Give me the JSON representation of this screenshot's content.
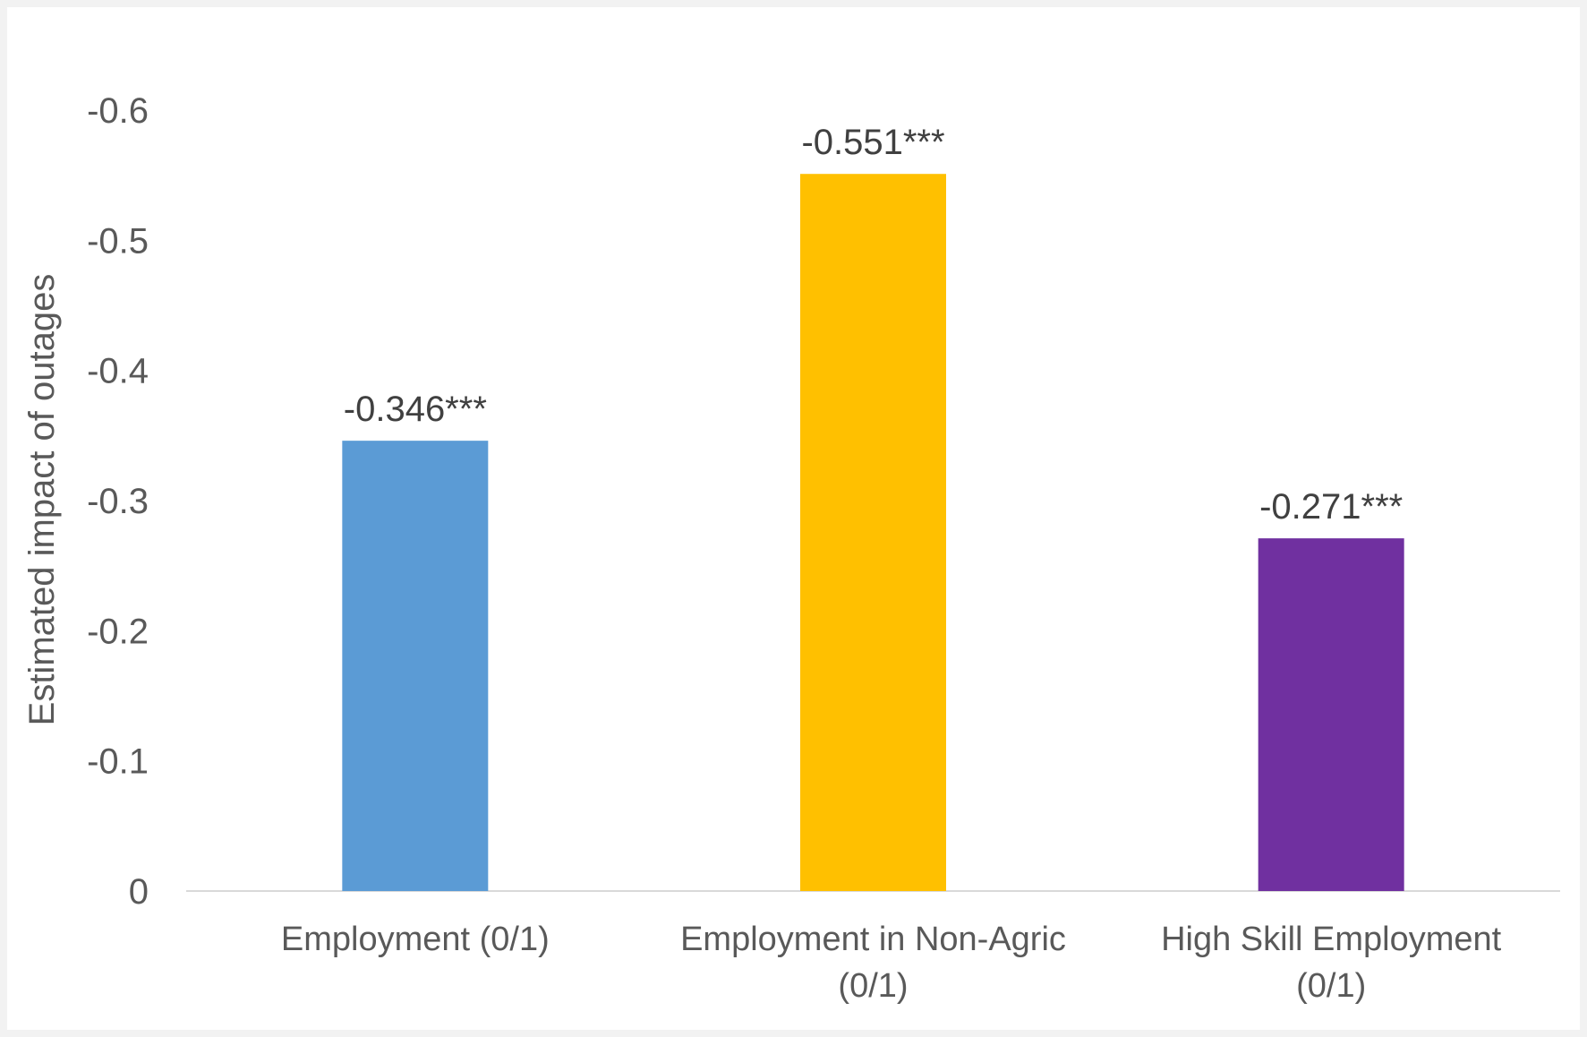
{
  "chart_data": {
    "type": "bar",
    "title": "",
    "xlabel": "",
    "ylabel": "Estimated impact of outages",
    "y_axis_reversed": true,
    "ylim": [
      0,
      -0.6
    ],
    "yticks": [
      0,
      -0.1,
      -0.2,
      -0.3,
      -0.4,
      -0.5,
      -0.6
    ],
    "ytick_labels": [
      "0",
      "-0.1",
      "-0.2",
      "-0.3",
      "-0.4",
      "-0.5",
      "-0.6"
    ],
    "gridlines": false,
    "categories": [
      [
        "Employment (0/1)"
      ],
      [
        "Employment in Non-Agric",
        "(0/1)"
      ],
      [
        "High Skill Employment",
        "(0/1)"
      ]
    ],
    "values": [
      -0.346,
      -0.551,
      -0.271
    ],
    "data_labels": [
      "-0.346***",
      "-0.551***",
      "-0.271***"
    ],
    "colors": [
      "#5b9bd5",
      "#ffc000",
      "#7030a0"
    ]
  }
}
